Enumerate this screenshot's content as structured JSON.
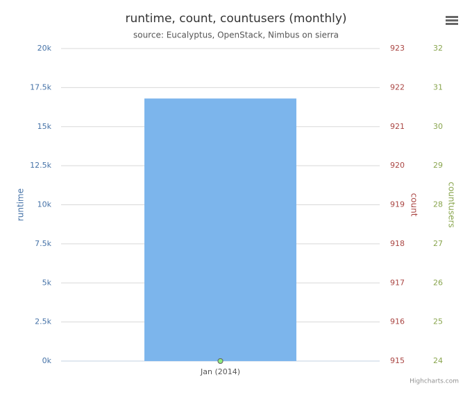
{
  "chart_data": {
    "type": "combo",
    "title": "runtime, count, countusers (monthly)",
    "subtitle": "source: Eucalyptus, OpenStack, Nimbus on sierra",
    "credits": "Highcharts.com",
    "categories": [
      "Jan (2014)"
    ],
    "y_title": "runtime",
    "y_color": "#4572a7",
    "y2_title": "count",
    "y2_color": "#aa4643",
    "y3_title": "countusers",
    "y3_color": "#89a54e",
    "ylim": [
      0,
      20000
    ],
    "yticks": [
      {
        "value": 0,
        "label": "0k"
      },
      {
        "value": 2500,
        "label": "2.5k"
      },
      {
        "value": 5000,
        "label": "5k"
      },
      {
        "value": 7500,
        "label": "7.5k"
      },
      {
        "value": 10000,
        "label": "10k"
      },
      {
        "value": 12500,
        "label": "12.5k"
      },
      {
        "value": 15000,
        "label": "15k"
      },
      {
        "value": 17500,
        "label": "17.5k"
      },
      {
        "value": 20000,
        "label": "20k"
      }
    ],
    "y2lim": [
      915,
      923
    ],
    "y2ticks": [
      915,
      916,
      917,
      918,
      919,
      920,
      921,
      922,
      923
    ],
    "y3lim": [
      24,
      32
    ],
    "y3ticks": [
      24,
      25,
      26,
      27,
      28,
      29,
      30,
      31,
      32
    ],
    "grid": true,
    "series": [
      {
        "type": "bar",
        "color": "#7cb5ec",
        "values": [
          16800
        ],
        "axis": "y"
      },
      {
        "type": "scatter",
        "color": "#aa4643",
        "values": [
          915
        ],
        "axis": "y2"
      },
      {
        "type": "scatter",
        "color": "#90ed7d",
        "values": [
          24
        ],
        "axis": "y3"
      }
    ]
  }
}
